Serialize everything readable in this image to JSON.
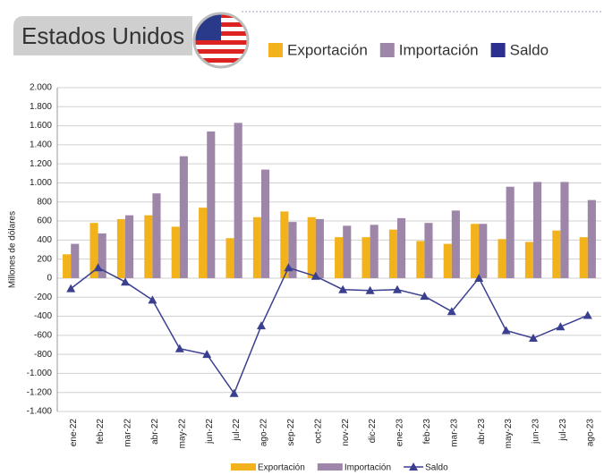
{
  "chart_data": {
    "type": "bar_line",
    "title": "Estados Unidos",
    "y_label": "Millones de dólares",
    "categories": [
      "ene-22",
      "feb-22",
      "mar-22",
      "abr-22",
      "may-22",
      "jun-22",
      "jul-22",
      "ago-22",
      "sep-22",
      "oct-22",
      "nov-22",
      "dic-22",
      "ene-23",
      "feb-23",
      "mar-23",
      "abr-23",
      "may-23",
      "jun-23",
      "jul-23",
      "ago-23"
    ],
    "series": [
      {
        "name": "Exportación",
        "color": "#f2b21b",
        "kind": "bar",
        "values": [
          250,
          580,
          620,
          660,
          540,
          740,
          420,
          640,
          700,
          640,
          430,
          430,
          510,
          390,
          360,
          570,
          410,
          380,
          500,
          430
        ]
      },
      {
        "name": "Importación",
        "color": "#9e86a8",
        "kind": "bar",
        "values": [
          360,
          470,
          660,
          890,
          1280,
          1540,
          1630,
          1140,
          590,
          620,
          550,
          560,
          630,
          580,
          710,
          570,
          960,
          1010,
          1010,
          820
        ]
      },
      {
        "name": "Saldo",
        "color": "#3a3f8f",
        "kind": "line",
        "values": [
          -110,
          110,
          -40,
          -230,
          -740,
          -800,
          -1210,
          -500,
          110,
          20,
          -120,
          -130,
          -120,
          -190,
          -350,
          0,
          -550,
          -630,
          -510,
          -390
        ]
      }
    ],
    "ylim": [
      -1400,
      2000
    ],
    "yticks": [
      {
        "value": -1400,
        "label": "-1.400"
      },
      {
        "value": -1200,
        "label": "-1.200"
      },
      {
        "value": -1000,
        "label": "-1.000"
      },
      -800,
      -600,
      -400,
      -200,
      0,
      200,
      400,
      600,
      800,
      {
        "value": 1000,
        "label": "1.000"
      },
      {
        "value": 1200,
        "label": "1.200"
      },
      {
        "value": 1400,
        "label": "1.400"
      },
      {
        "value": 1600,
        "label": "1.600"
      },
      {
        "value": 1800,
        "label": "1.800"
      },
      {
        "value": 2000,
        "label": "2.000"
      }
    ],
    "grid": true
  }
}
